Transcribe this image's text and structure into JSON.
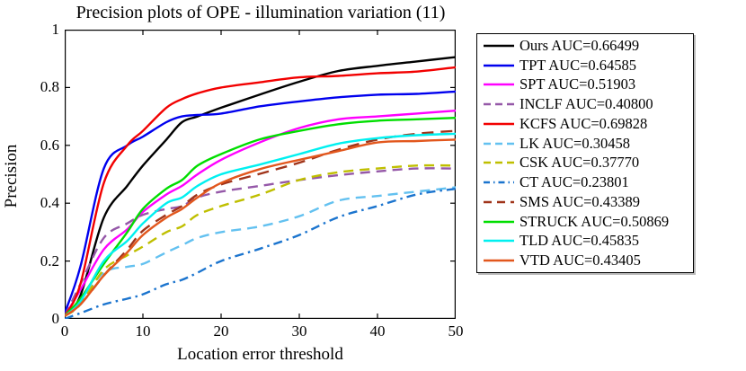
{
  "chart_data": {
    "type": "line",
    "title": "Precision plots of OPE - illumination variation (11)",
    "xlabel": "Location error threshold",
    "ylabel": "Precision",
    "xlim": [
      0,
      50
    ],
    "ylim": [
      0,
      1
    ],
    "xticks": [
      "0",
      "10",
      "20",
      "30",
      "40",
      "50"
    ],
    "yticks": [
      "0",
      "0.2",
      "0.4",
      "0.6",
      "0.8",
      "1"
    ],
    "grid": false,
    "legend_position": "outside-right",
    "x": [
      0,
      2,
      5,
      8,
      10,
      13,
      15,
      17,
      20,
      25,
      30,
      35,
      40,
      45,
      50
    ],
    "series": [
      {
        "name": "Ours",
        "auc": 0.66499,
        "label": "Ours AUC=0.66499",
        "color": "#000000",
        "dash": "solid",
        "values": [
          0.01,
          0.08,
          0.35,
          0.46,
          0.53,
          0.62,
          0.68,
          0.7,
          0.73,
          0.776,
          0.82,
          0.857,
          0.875,
          0.89,
          0.905
        ]
      },
      {
        "name": "TPT",
        "auc": 0.64585,
        "label": "TPT AUC=0.64585",
        "color": "#0000EE",
        "dash": "solid",
        "values": [
          0.02,
          0.18,
          0.52,
          0.6,
          0.63,
          0.68,
          0.7,
          0.705,
          0.71,
          0.735,
          0.752,
          0.766,
          0.775,
          0.778,
          0.786
        ]
      },
      {
        "name": "SPT",
        "auc": 0.51903,
        "label": "SPT AUC=0.51903",
        "color": "#FF00FF",
        "dash": "solid",
        "values": [
          0.01,
          0.1,
          0.24,
          0.31,
          0.37,
          0.43,
          0.46,
          0.5,
          0.55,
          0.611,
          0.66,
          0.69,
          0.7,
          0.71,
          0.72
        ]
      },
      {
        "name": "INCLF",
        "auc": 0.408,
        "label": "INCLF AUC=0.40800",
        "color": "#9558A8",
        "dash": "dashed",
        "values": [
          0.01,
          0.12,
          0.28,
          0.33,
          0.36,
          0.38,
          0.39,
          0.42,
          0.44,
          0.46,
          0.48,
          0.497,
          0.51,
          0.52,
          0.52
        ]
      },
      {
        "name": "KCFS",
        "auc": 0.69828,
        "label": "KCFS AUC=0.69828",
        "color": "#F20000",
        "dash": "solid",
        "values": [
          0.01,
          0.12,
          0.47,
          0.6,
          0.65,
          0.73,
          0.76,
          0.78,
          0.8,
          0.818,
          0.835,
          0.84,
          0.849,
          0.855,
          0.87
        ]
      },
      {
        "name": "LK",
        "auc": 0.30458,
        "label": "LK AUC=0.30458",
        "color": "#63C1F0",
        "dash": "dashed",
        "values": [
          0.01,
          0.06,
          0.16,
          0.18,
          0.19,
          0.23,
          0.255,
          0.28,
          0.3,
          0.32,
          0.355,
          0.409,
          0.425,
          0.44,
          0.455
        ]
      },
      {
        "name": "CSK",
        "auc": 0.3777,
        "label": "CSK AUC=0.37770",
        "color": "#BFBF00",
        "dash": "dashed",
        "values": [
          0.01,
          0.05,
          0.17,
          0.22,
          0.25,
          0.3,
          0.32,
          0.36,
          0.39,
          0.43,
          0.48,
          0.507,
          0.52,
          0.53,
          0.53
        ]
      },
      {
        "name": "CT",
        "auc": 0.23801,
        "label": "CT AUC=0.23801",
        "color": "#1B74CE",
        "dash": "dashdot",
        "values": [
          0.0,
          0.02,
          0.05,
          0.07,
          0.085,
          0.12,
          0.135,
          0.16,
          0.2,
          0.243,
          0.29,
          0.352,
          0.39,
          0.43,
          0.45
        ]
      },
      {
        "name": "SMS",
        "auc": 0.43389,
        "label": "SMS AUC=0.43389",
        "color": "#A0341A",
        "dash": "dashed-long",
        "values": [
          0.01,
          0.05,
          0.15,
          0.24,
          0.305,
          0.36,
          0.39,
          0.43,
          0.465,
          0.502,
          0.54,
          0.585,
          0.62,
          0.64,
          0.65
        ]
      },
      {
        "name": "STRUCK",
        "auc": 0.50869,
        "label": "STRUCK AUC=0.50869",
        "color": "#00DE00",
        "dash": "solid",
        "values": [
          0.01,
          0.07,
          0.19,
          0.3,
          0.38,
          0.45,
          0.48,
          0.53,
          0.57,
          0.621,
          0.65,
          0.673,
          0.685,
          0.69,
          0.695
        ]
      },
      {
        "name": "TLD",
        "auc": 0.45835,
        "label": "TLD AUC=0.45835",
        "color": "#00F0F0",
        "dash": "solid",
        "values": [
          0.01,
          0.06,
          0.2,
          0.27,
          0.33,
          0.4,
          0.42,
          0.46,
          0.5,
          0.534,
          0.57,
          0.606,
          0.625,
          0.635,
          0.64
        ]
      },
      {
        "name": "VTD",
        "auc": 0.43405,
        "label": "VTD AUC=0.43405",
        "color": "#E2571D",
        "dash": "solid",
        "values": [
          0.01,
          0.05,
          0.15,
          0.23,
          0.29,
          0.35,
          0.38,
          0.42,
          0.47,
          0.518,
          0.55,
          0.58,
          0.61,
          0.615,
          0.62
        ]
      }
    ]
  }
}
